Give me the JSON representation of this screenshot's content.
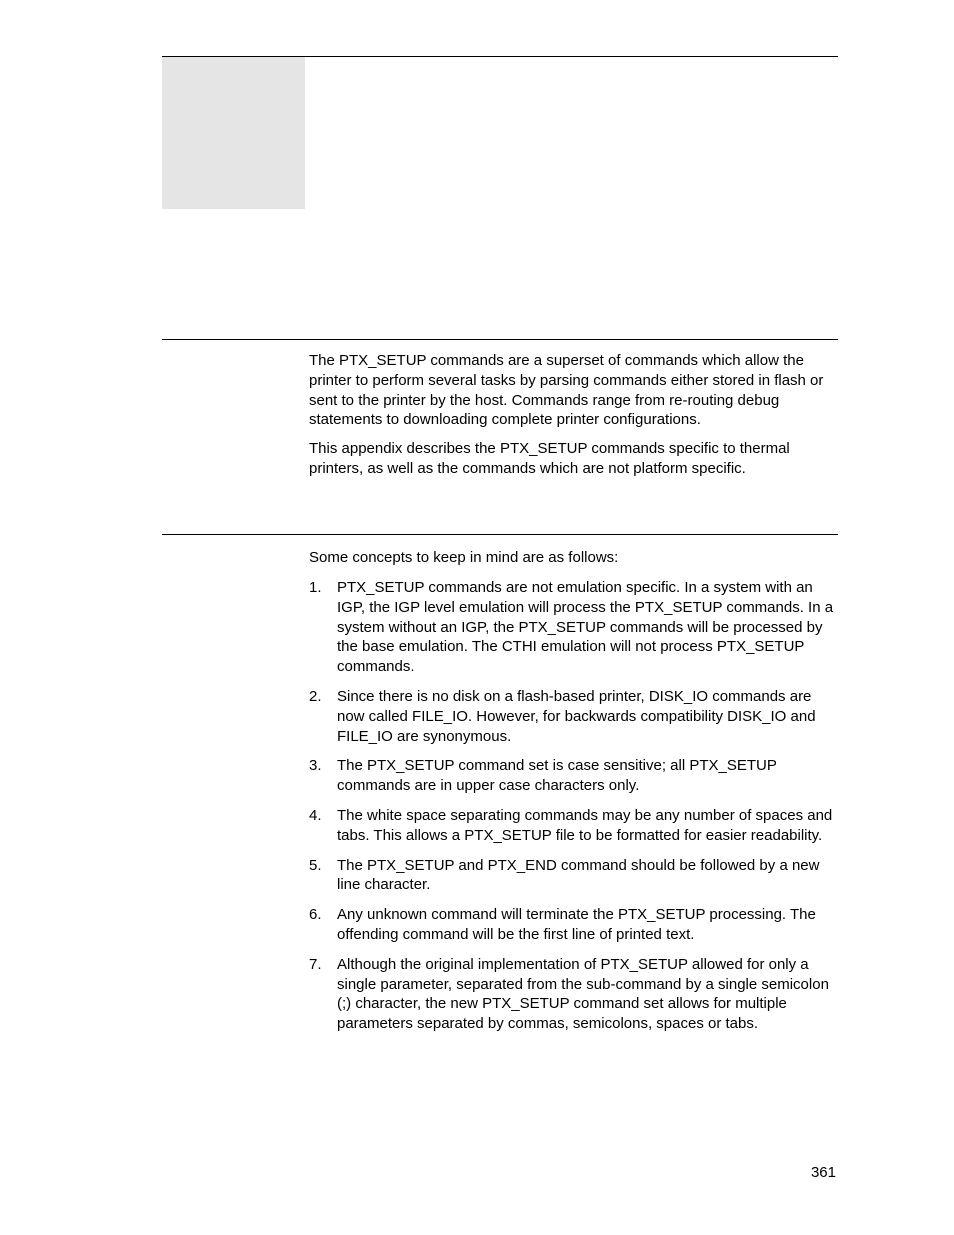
{
  "paragraphs": {
    "p1": "The PTX_SETUP commands are a superset of commands which allow the printer to perform several tasks by parsing commands either stored in flash or sent to the printer by the host. Commands range from re-routing debug statements to downloading complete printer configurations.",
    "p2": "This appendix describes the PTX_SETUP commands specific to thermal printers, as well as the commands which are not platform specific.",
    "p3": "Some concepts to keep in mind are as follows:"
  },
  "list": [
    {
      "num": "1.",
      "text": "PTX_SETUP commands are not emulation specific. In a system with an IGP, the IGP level emulation will process the PTX_SETUP commands. In a system without an IGP, the PTX_SETUP commands will be processed by the base emulation. The CTHI emulation will not process PTX_SETUP commands."
    },
    {
      "num": "2.",
      "text": "Since there is no disk on a flash-based printer, DISK_IO commands are now called FILE_IO. However, for backwards compatibility DISK_IO and FILE_IO are synonymous."
    },
    {
      "num": "3.",
      "text": "The PTX_SETUP command set is case sensitive; all PTX_SETUP commands are in upper case characters only."
    },
    {
      "num": "4.",
      "text": "The white space separating commands may be any number of spaces and tabs. This allows a PTX_SETUP file to be formatted for easier readability."
    },
    {
      "num": "5.",
      "text": "The PTX_SETUP and PTX_END command should be followed by a new line character."
    },
    {
      "num": "6.",
      "text": "Any unknown command will terminate the PTX_SETUP processing. The offending command will be the first line of printed text."
    },
    {
      "num": "7.",
      "text": "Although the original implementation of PTX_SETUP allowed for only a single parameter, separated from the sub-command by a single semicolon (;) character, the new PTX_SETUP command set allows for multiple parameters separated by commas, semicolons, spaces or tabs."
    }
  ],
  "page_number": "361"
}
